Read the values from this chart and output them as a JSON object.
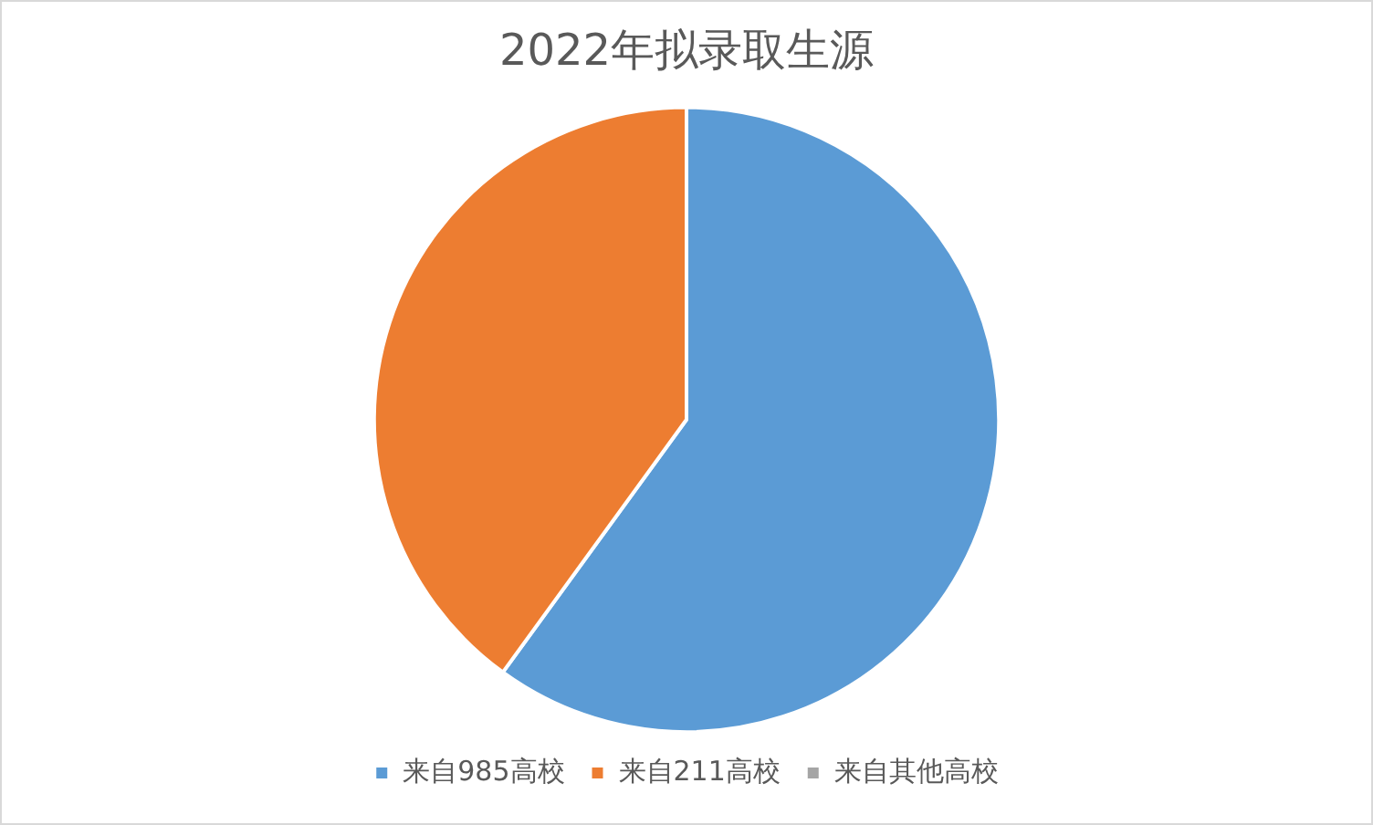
{
  "chart_data": {
    "type": "pie",
    "title": "2022年拟录取生源",
    "categories": [
      "来自985高校",
      "来自211高校",
      "来自其他高校"
    ],
    "values": [
      60,
      40,
      0
    ],
    "colors": [
      "#5b9bd5",
      "#ed7d31",
      "#a5a5a5"
    ],
    "legend": "bottom"
  }
}
